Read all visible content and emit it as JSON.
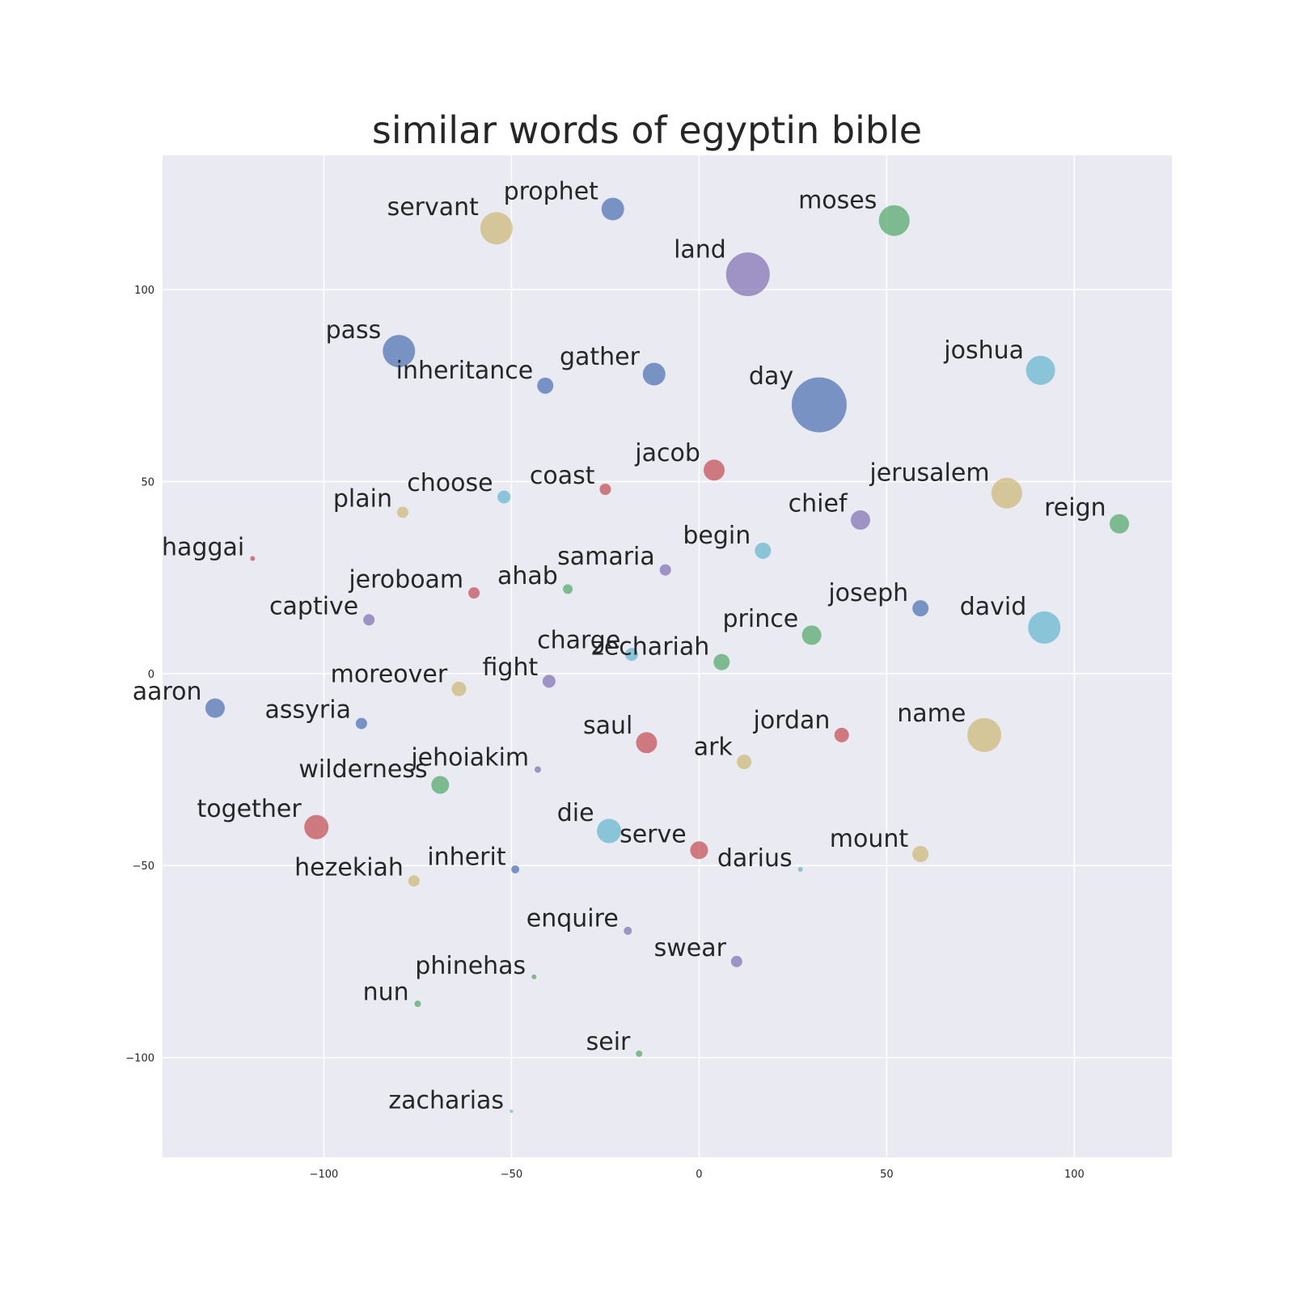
{
  "chart_data": {
    "type": "scatter",
    "title": "similar words of egyptin bible",
    "xlabel": "",
    "ylabel": "",
    "xlim": [
      -143,
      126
    ],
    "ylim": [
      -126,
      135
    ],
    "xticks": [
      -100,
      -50,
      0,
      50,
      100
    ],
    "yticks": [
      -100,
      -50,
      0,
      50,
      100
    ],
    "xtick_labels": [
      "−100",
      "−50",
      "0",
      "50",
      "100"
    ],
    "ytick_labels": [
      "−100",
      "−50",
      "0",
      "50",
      "100"
    ],
    "grid": true,
    "background": "#eaeaf2",
    "grid_color": "#ffffff",
    "colors": {
      "blue": "#4c72b0",
      "green": "#55a868",
      "red": "#c44e52",
      "purple": "#8172b2",
      "yellow": "#ccb974",
      "cyan": "#64b5cd"
    },
    "points": [
      {
        "label": "servant",
        "x": -54,
        "y": 116,
        "size": 20,
        "color": "yellow"
      },
      {
        "label": "prophet",
        "x": -23,
        "y": 121,
        "size": 14,
        "color": "blue"
      },
      {
        "label": "moses",
        "x": 52,
        "y": 118,
        "size": 19,
        "color": "green"
      },
      {
        "label": "land",
        "x": 13,
        "y": 104,
        "size": 27,
        "color": "purple"
      },
      {
        "label": "pass",
        "x": -80,
        "y": 84,
        "size": 20,
        "color": "blue"
      },
      {
        "label": "inheritance",
        "x": -41,
        "y": 75,
        "size": 10,
        "color": "blue"
      },
      {
        "label": "gather",
        "x": -12,
        "y": 78,
        "size": 14,
        "color": "blue"
      },
      {
        "label": "joshua",
        "x": 91,
        "y": 79,
        "size": 18,
        "color": "cyan"
      },
      {
        "label": "day",
        "x": 32,
        "y": 70,
        "size": 34,
        "color": "blue"
      },
      {
        "label": "jacob",
        "x": 4,
        "y": 53,
        "size": 13,
        "color": "red"
      },
      {
        "label": "coast",
        "x": -25,
        "y": 48,
        "size": 7,
        "color": "red"
      },
      {
        "label": "choose",
        "x": -52,
        "y": 46,
        "size": 8,
        "color": "cyan"
      },
      {
        "label": "plain",
        "x": -79,
        "y": 42,
        "size": 7,
        "color": "yellow"
      },
      {
        "label": "jerusalem",
        "x": 82,
        "y": 47,
        "size": 19,
        "color": "yellow"
      },
      {
        "label": "chief",
        "x": 43,
        "y": 40,
        "size": 12,
        "color": "purple"
      },
      {
        "label": "reign",
        "x": 112,
        "y": 39,
        "size": 12,
        "color": "green"
      },
      {
        "label": "haggai",
        "x": -119,
        "y": 30,
        "size": 3,
        "color": "red"
      },
      {
        "label": "begin",
        "x": 17,
        "y": 32,
        "size": 10,
        "color": "cyan"
      },
      {
        "label": "samaria",
        "x": -9,
        "y": 27,
        "size": 7,
        "color": "purple"
      },
      {
        "label": "ahab",
        "x": -35,
        "y": 22,
        "size": 6,
        "color": "green"
      },
      {
        "label": "jeroboam",
        "x": -60,
        "y": 21,
        "size": 7,
        "color": "red"
      },
      {
        "label": "captive",
        "x": -88,
        "y": 14,
        "size": 7,
        "color": "purple"
      },
      {
        "label": "joseph",
        "x": 59,
        "y": 17,
        "size": 10,
        "color": "blue"
      },
      {
        "label": "david",
        "x": 92,
        "y": 12,
        "size": 20,
        "color": "cyan"
      },
      {
        "label": "prince",
        "x": 30,
        "y": 10,
        "size": 12,
        "color": "green"
      },
      {
        "label": "charge",
        "x": -18,
        "y": 5,
        "size": 8,
        "color": "cyan"
      },
      {
        "label": "zechariah",
        "x": 6,
        "y": 3,
        "size": 10,
        "color": "green"
      },
      {
        "label": "fight",
        "x": -40,
        "y": -2,
        "size": 8,
        "color": "purple"
      },
      {
        "label": "moreover",
        "x": -64,
        "y": -4,
        "size": 9,
        "color": "yellow"
      },
      {
        "label": "aaron",
        "x": -129,
        "y": -9,
        "size": 12,
        "color": "blue"
      },
      {
        "label": "assyria",
        "x": -90,
        "y": -13,
        "size": 7,
        "color": "blue"
      },
      {
        "label": "saul",
        "x": -14,
        "y": -18,
        "size": 13,
        "color": "red"
      },
      {
        "label": "jordan",
        "x": 38,
        "y": -16,
        "size": 9,
        "color": "red"
      },
      {
        "label": "name",
        "x": 76,
        "y": -16,
        "size": 21,
        "color": "yellow"
      },
      {
        "label": "ark",
        "x": 12,
        "y": -23,
        "size": 9,
        "color": "yellow"
      },
      {
        "label": "jehoiakim",
        "x": -43,
        "y": -25,
        "size": 4,
        "color": "purple"
      },
      {
        "label": "wilderness",
        "x": -69,
        "y": -29,
        "size": 11,
        "color": "green"
      },
      {
        "label": "together",
        "x": -102,
        "y": -40,
        "size": 15,
        "color": "red"
      },
      {
        "label": "die",
        "x": -24,
        "y": -41,
        "size": 15,
        "color": "cyan"
      },
      {
        "label": "serve",
        "x": 0,
        "y": -46,
        "size": 11,
        "color": "red"
      },
      {
        "label": "darius",
        "x": 27,
        "y": -51,
        "size": 3,
        "color": "cyan"
      },
      {
        "label": "mount",
        "x": 59,
        "y": -47,
        "size": 10,
        "color": "yellow"
      },
      {
        "label": "inherit",
        "x": -49,
        "y": -51,
        "size": 5,
        "color": "blue"
      },
      {
        "label": "hezekiah",
        "x": -76,
        "y": -54,
        "size": 7,
        "color": "yellow"
      },
      {
        "label": "enquire",
        "x": -19,
        "y": -67,
        "size": 5,
        "color": "purple"
      },
      {
        "label": "swear",
        "x": 10,
        "y": -75,
        "size": 7,
        "color": "purple"
      },
      {
        "label": "phinehas",
        "x": -44,
        "y": -79,
        "size": 3,
        "color": "green"
      },
      {
        "label": "nun",
        "x": -75,
        "y": -86,
        "size": 4,
        "color": "green"
      },
      {
        "label": "seir",
        "x": -16,
        "y": -99,
        "size": 4,
        "color": "green"
      },
      {
        "label": "zacharias",
        "x": -50,
        "y": -114,
        "size": 2,
        "color": "cyan"
      }
    ]
  }
}
